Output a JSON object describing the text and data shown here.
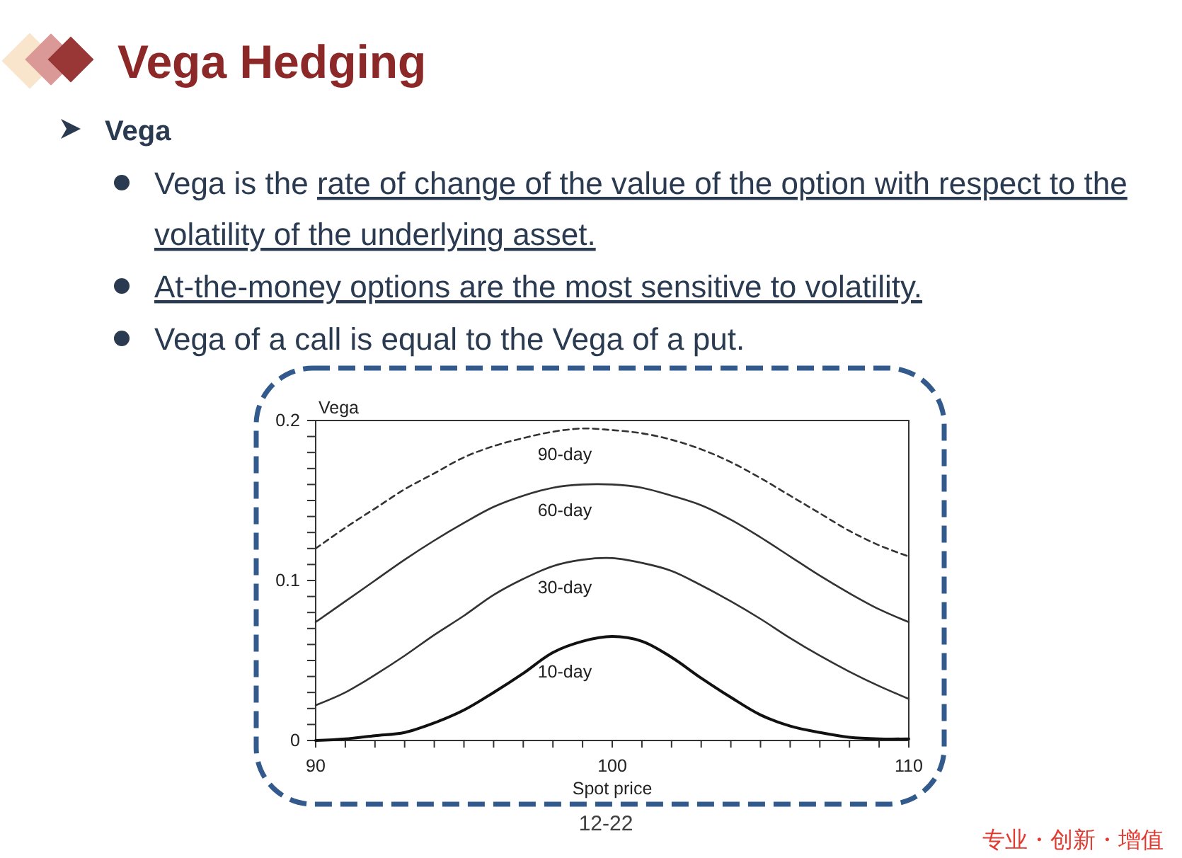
{
  "chart_data": {
    "type": "line",
    "title": "Vega Hedging",
    "xlabel": "Spot price",
    "ylabel": "Vega",
    "annotations": [
      "Vega",
      "Vega is the rate of change of the value of the option with respect to the volatility of the underlying asset.",
      "At-the-money options are the most sensitive to volatility.",
      "Vega of a call is equal to the Vega of a put.",
      "12-22",
      "专业・创新・增值"
    ],
    "x": [
      90,
      91,
      92,
      93,
      94,
      95,
      96,
      97,
      98,
      99,
      100,
      101,
      102,
      103,
      104,
      105,
      106,
      107,
      108,
      109,
      110
    ],
    "series": [
      {
        "name": "90-day",
        "color": "#333333",
        "line_style": "dashed",
        "values": [
          0.12,
          0.133,
          0.145,
          0.157,
          0.167,
          0.177,
          0.184,
          0.189,
          0.193,
          0.195,
          0.194,
          0.192,
          0.188,
          0.182,
          0.174,
          0.164,
          0.153,
          0.142,
          0.131,
          0.122,
          0.115
        ]
      },
      {
        "name": "60-day",
        "color": "#333333",
        "values": [
          0.074,
          0.087,
          0.1,
          0.113,
          0.125,
          0.136,
          0.146,
          0.153,
          0.158,
          0.16,
          0.16,
          0.158,
          0.153,
          0.147,
          0.138,
          0.127,
          0.115,
          0.103,
          0.092,
          0.082,
          0.074
        ]
      },
      {
        "name": "30-day",
        "color": "#333333",
        "values": [
          0.022,
          0.03,
          0.041,
          0.053,
          0.066,
          0.078,
          0.091,
          0.101,
          0.109,
          0.113,
          0.114,
          0.111,
          0.106,
          0.097,
          0.087,
          0.076,
          0.064,
          0.053,
          0.043,
          0.034,
          0.026
        ]
      },
      {
        "name": "10-day",
        "color": "#111111",
        "values": [
          0.0,
          0.001,
          0.003,
          0.005,
          0.011,
          0.019,
          0.03,
          0.042,
          0.055,
          0.062,
          0.065,
          0.062,
          0.052,
          0.039,
          0.027,
          0.016,
          0.009,
          0.005,
          0.002,
          0.001,
          0.001
        ]
      }
    ],
    "line_style": "solid",
    "xlim": [
      90,
      110
    ],
    "ylim": [
      0,
      0.2
    ],
    "xticks": [
      90,
      {
        "value": 91,
        "label": null
      },
      {
        "value": 92,
        "label": null
      },
      {
        "value": 93,
        "label": null
      },
      {
        "value": 94,
        "label": null
      },
      {
        "value": 95,
        "label": null
      },
      {
        "value": 96,
        "label": null
      },
      {
        "value": 97,
        "label": null
      },
      {
        "value": 98,
        "label": null
      },
      {
        "value": 99,
        "label": null
      },
      100,
      {
        "value": 101,
        "label": null
      },
      {
        "value": 102,
        "label": null
      },
      {
        "value": 103,
        "label": null
      },
      {
        "value": 104,
        "label": null
      },
      {
        "value": 105,
        "label": null
      },
      {
        "value": 106,
        "label": null
      },
      {
        "value": 107,
        "label": null
      },
      {
        "value": 108,
        "label": null
      },
      {
        "value": 109,
        "label": null
      },
      110
    ],
    "yticks": [
      0,
      {
        "value": 0.01,
        "label": null
      },
      {
        "value": 0.02,
        "label": null
      },
      {
        "value": 0.03,
        "label": null
      },
      {
        "value": 0.04,
        "label": null
      },
      {
        "value": 0.05,
        "label": null
      },
      {
        "value": 0.06,
        "label": null
      },
      {
        "value": 0.07,
        "label": null
      },
      {
        "value": 0.08,
        "label": null
      },
      {
        "value": 0.09,
        "label": null
      },
      0.1,
      {
        "value": 0.11,
        "label": null
      },
      {
        "value": 0.12,
        "label": null
      },
      {
        "value": 0.13,
        "label": null
      },
      {
        "value": 0.14,
        "label": null
      },
      {
        "value": 0.15,
        "label": null
      },
      {
        "value": 0.16,
        "label": null
      },
      {
        "value": 0.17,
        "label": null
      },
      {
        "value": 0.18,
        "label": null
      },
      {
        "value": 0.19,
        "label": null
      },
      0.2
    ]
  }
}
